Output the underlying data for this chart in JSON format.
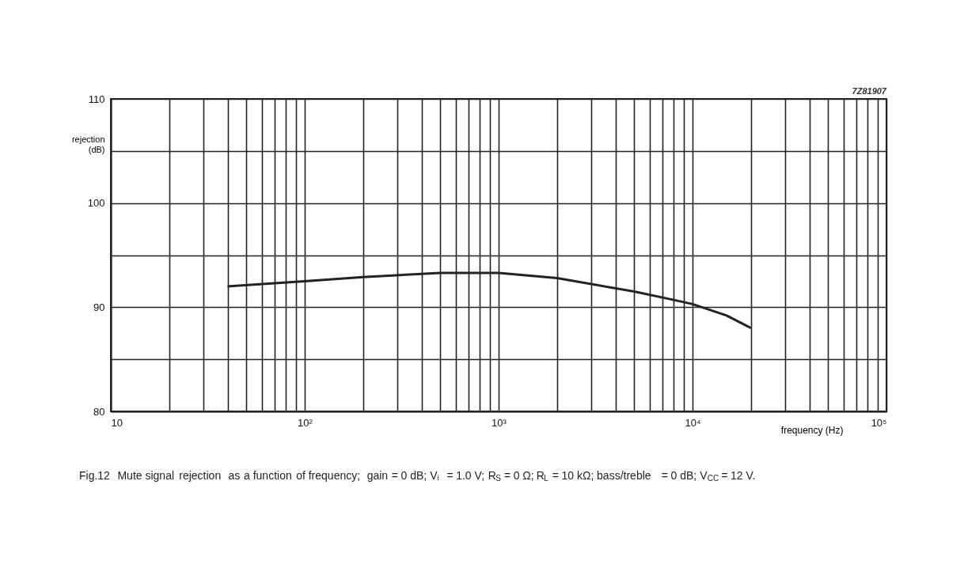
{
  "chart_data": {
    "type": "line",
    "xlabel": "frequency (Hz)",
    "ylabel": "rejection (dB)",
    "log": "x",
    "grid": true,
    "marker": "none",
    "line_style": "solid",
    "xlim": [
      10,
      100000
    ],
    "ylim": [
      80,
      110
    ],
    "xticks": [
      10,
      {
        "value": 20,
        "label": null
      },
      {
        "value": 30,
        "label": null
      },
      {
        "value": 40,
        "label": null
      },
      {
        "value": 50,
        "label": null
      },
      {
        "value": 60,
        "label": null
      },
      {
        "value": 70,
        "label": null
      },
      {
        "value": 80,
        "label": null
      },
      {
        "value": 90,
        "label": null
      },
      {
        "value": 100,
        "label": "10²"
      },
      {
        "value": 200,
        "label": null
      },
      {
        "value": 300,
        "label": null
      },
      {
        "value": 400,
        "label": null
      },
      {
        "value": 500,
        "label": null
      },
      {
        "value": 600,
        "label": null
      },
      {
        "value": 700,
        "label": null
      },
      {
        "value": 800,
        "label": null
      },
      {
        "value": 900,
        "label": null
      },
      {
        "value": 1000,
        "label": "10³"
      },
      {
        "value": 2000,
        "label": null
      },
      {
        "value": 3000,
        "label": null
      },
      {
        "value": 4000,
        "label": null
      },
      {
        "value": 5000,
        "label": null
      },
      {
        "value": 6000,
        "label": null
      },
      {
        "value": 7000,
        "label": null
      },
      {
        "value": 8000,
        "label": null
      },
      {
        "value": 9000,
        "label": null
      },
      {
        "value": 10000,
        "label": "10⁴"
      },
      {
        "value": 20000,
        "label": null
      },
      {
        "value": 30000,
        "label": null
      },
      {
        "value": 40000,
        "label": null
      },
      {
        "value": 50000,
        "label": null
      },
      {
        "value": 60000,
        "label": null
      },
      {
        "value": 70000,
        "label": null
      },
      {
        "value": 80000,
        "label": null
      },
      {
        "value": 90000,
        "label": null
      },
      {
        "value": 100000,
        "label": "10⁵"
      }
    ],
    "yticks": [
      80,
      {
        "value": 85,
        "label": null
      },
      90,
      {
        "value": 95,
        "label": null
      },
      100,
      {
        "value": 105,
        "label": null
      },
      110
    ],
    "x": [
      40,
      70,
      100,
      200,
      500,
      1000,
      2000,
      5000,
      8000,
      10000,
      15000,
      20000
    ],
    "series": [
      {
        "color": "#222222",
        "values": [
          92.0,
          92.3,
          92.5,
          92.9,
          93.3,
          93.3,
          92.8,
          91.5,
          90.7,
          90.3,
          89.2,
          88.0
        ]
      }
    ],
    "annotations": [
      "7Z81907",
      "Fig.12  Mute signal rejection as a function of frequency; gain = 0 dB; Vᵢ = 1.0 V; R$_{S}$ = 0 Ω; R$_{L}$ = 10 kΩ; bass/treble = 0 dB; V$_{CC}$ = 12 V."
    ]
  }
}
